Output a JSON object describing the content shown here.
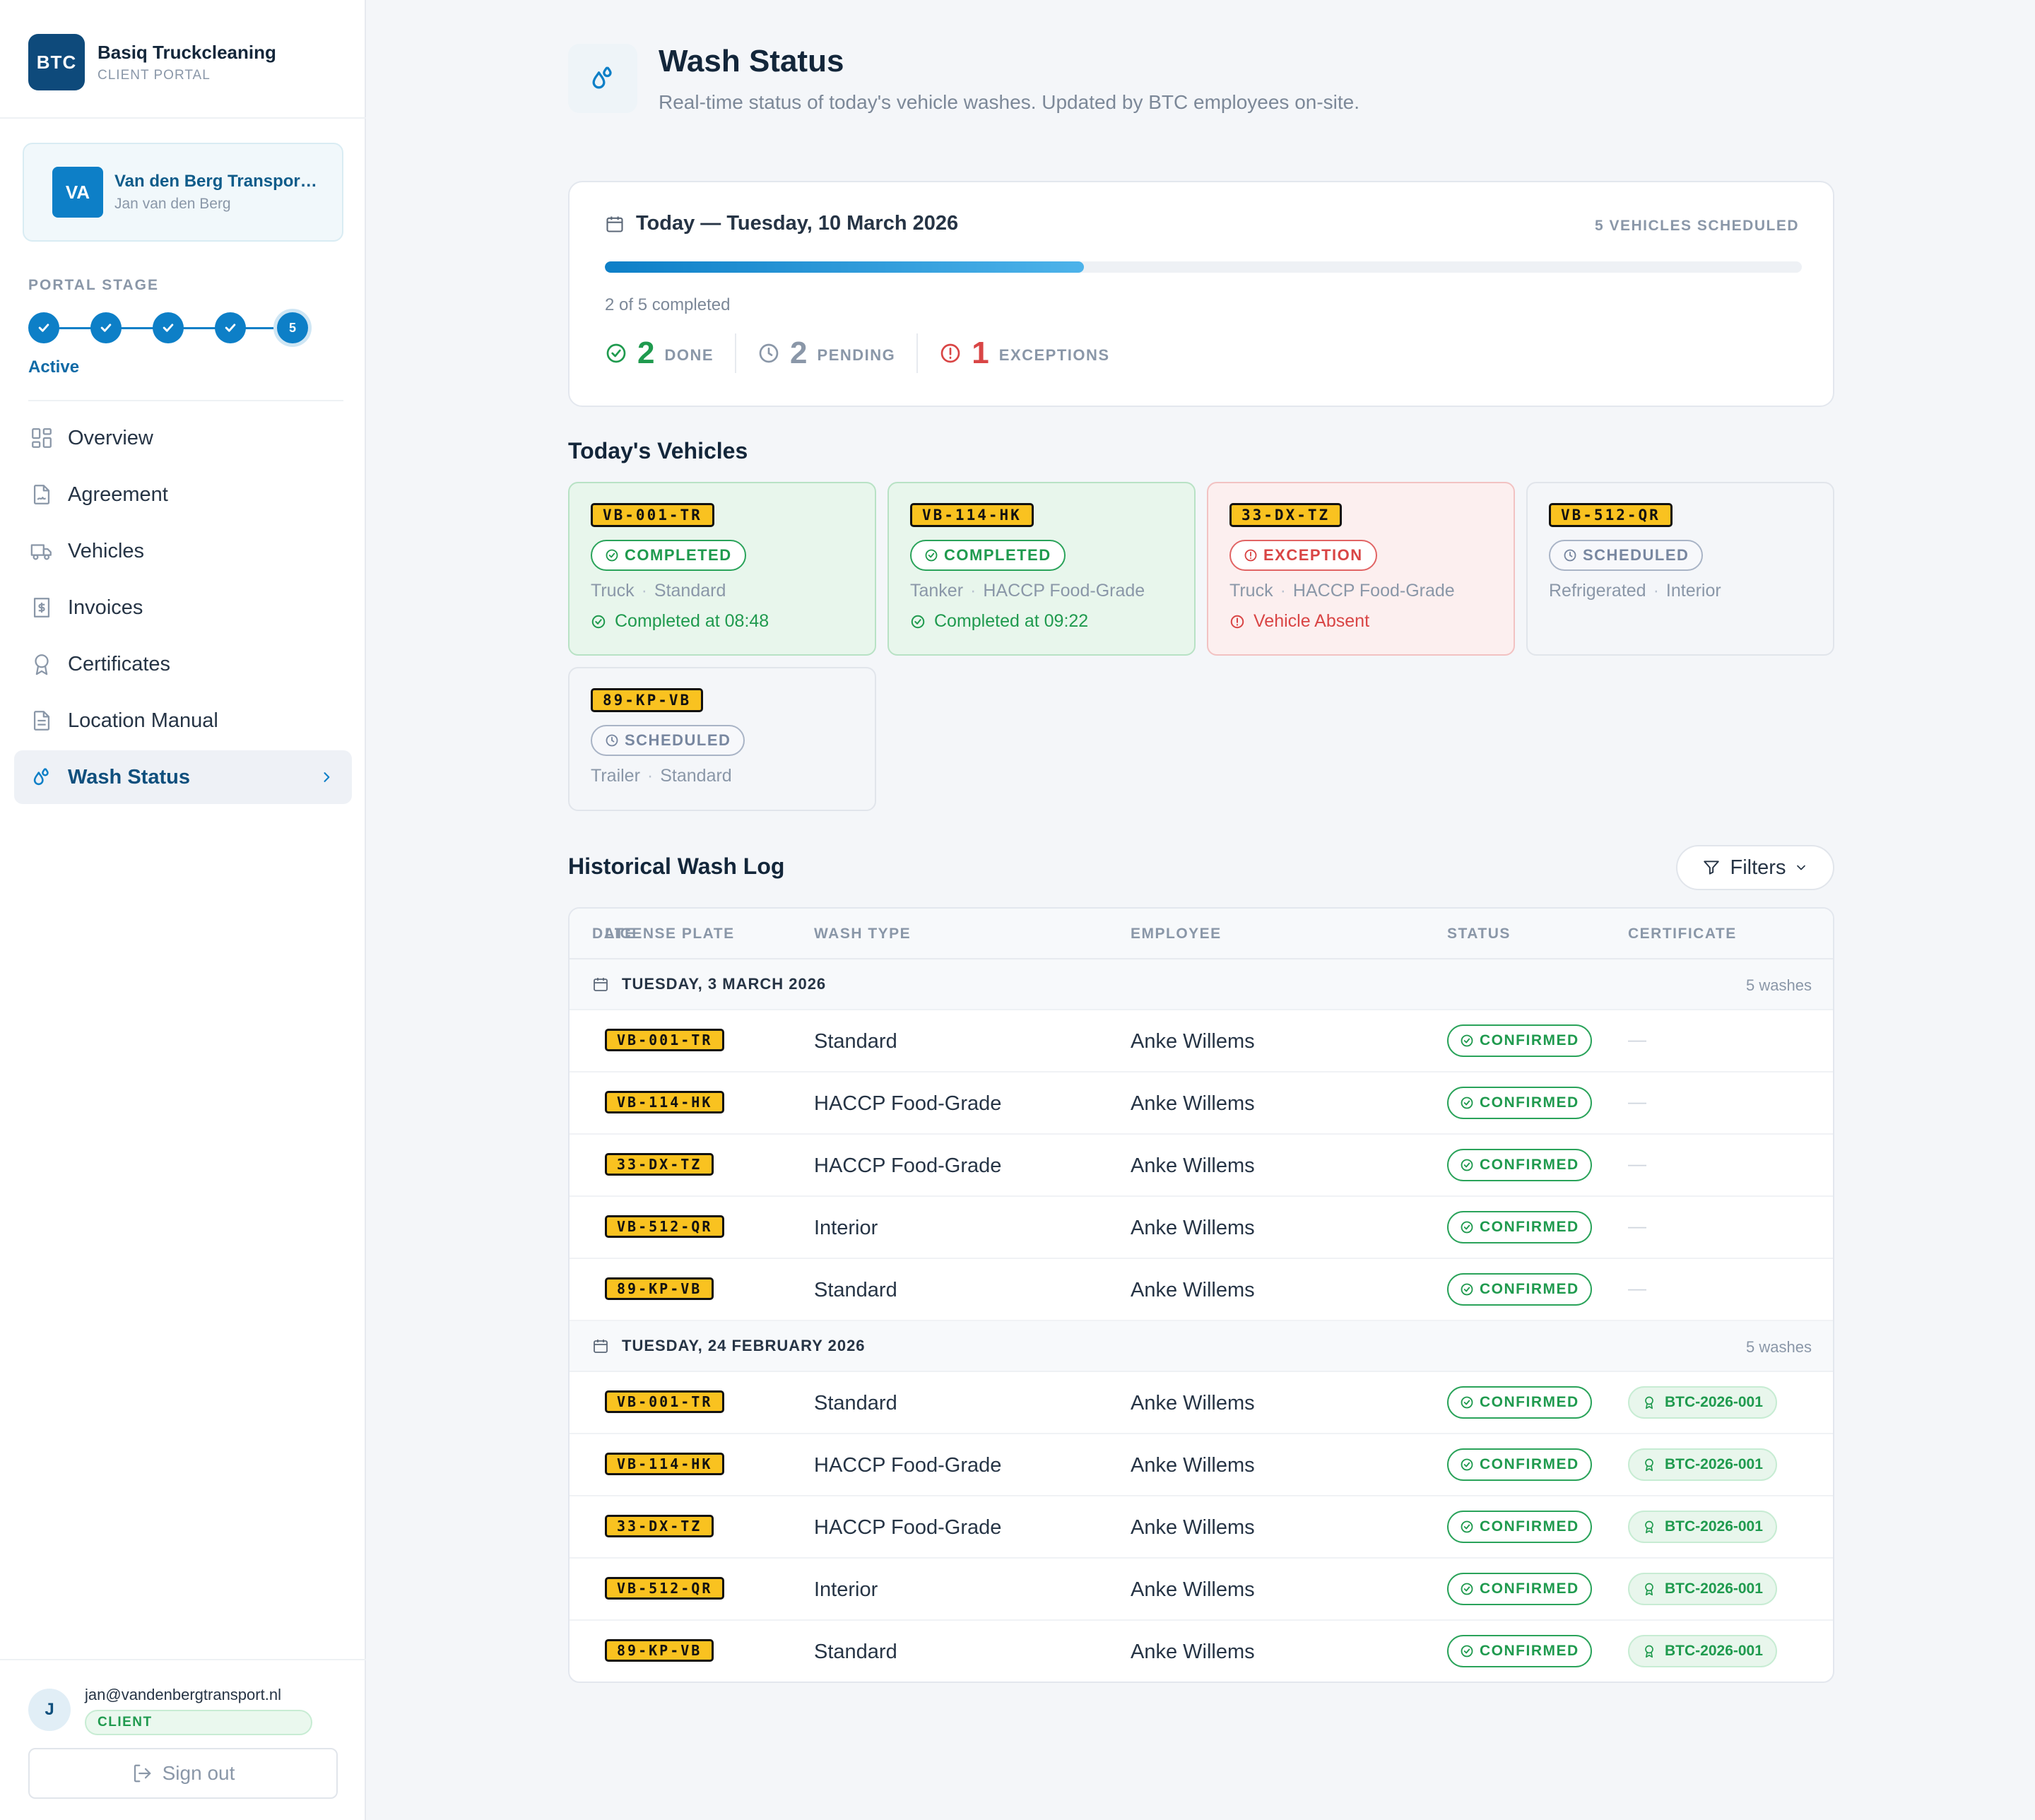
{
  "brand": {
    "logo": "BTC",
    "name": "Basiq Truckcleaning",
    "subtitle": "CLIENT PORTAL"
  },
  "client": {
    "initials": "VA",
    "company": "Van den Berg Transport B.V.",
    "person": "Jan van den Berg"
  },
  "portal_stage": {
    "label": "PORTAL STAGE",
    "current_step": "5",
    "status": "Active",
    "steps_total": 5
  },
  "nav": [
    {
      "label": "Overview",
      "icon": "grid-icon"
    },
    {
      "label": "Agreement",
      "icon": "document-sign-icon"
    },
    {
      "label": "Vehicles",
      "icon": "truck-icon"
    },
    {
      "label": "Invoices",
      "icon": "invoice-icon"
    },
    {
      "label": "Certificates",
      "icon": "award-icon"
    },
    {
      "label": "Location Manual",
      "icon": "file-text-icon"
    },
    {
      "label": "Wash Status",
      "icon": "droplets-icon",
      "active": true
    }
  ],
  "user": {
    "initial": "J",
    "email": "jan@vandenbergtransport.nl",
    "role": "CLIENT",
    "signout": "Sign out"
  },
  "header": {
    "title": "Wash Status",
    "subtitle": "Real-time status of today's vehicle washes. Updated by BTC employees on-site."
  },
  "today": {
    "date": "Today — Tuesday, 10 March 2026",
    "scheduled": "5 VEHICLES SCHEDULED",
    "progress_fraction": 0.4,
    "progress_label": "2 of 5 completed",
    "done_count": "2",
    "done_label": "DONE",
    "pending_count": "2",
    "pending_label": "PENDING",
    "exceptions_count": "1",
    "exceptions_label": "EXCEPTIONS"
  },
  "todays_vehicles_title": "Today's Vehicles",
  "vehicles": [
    {
      "plate": "VB-001-TR",
      "status": "COMPLETED",
      "type": "Truck",
      "wash": "Standard",
      "note": "Completed at 08:48"
    },
    {
      "plate": "VB-114-HK",
      "status": "COMPLETED",
      "type": "Tanker",
      "wash": "HACCP Food-Grade",
      "note": "Completed at 09:22"
    },
    {
      "plate": "33-DX-TZ",
      "status": "EXCEPTION",
      "type": "Truck",
      "wash": "HACCP Food-Grade",
      "note": "Vehicle Absent"
    },
    {
      "plate": "VB-512-QR",
      "status": "SCHEDULED",
      "type": "Refrigerated",
      "wash": "Interior"
    },
    {
      "plate": "89-KP-VB",
      "status": "SCHEDULED",
      "type": "Trailer",
      "wash": "Standard"
    }
  ],
  "history": {
    "title": "Historical Wash Log",
    "filters": "Filters",
    "columns": {
      "date": "DATE",
      "plate": "LICENSE PLATE",
      "wash_type": "WASH TYPE",
      "employee": "EMPLOYEE",
      "status": "STATUS",
      "certificate": "CERTIFICATE"
    },
    "groups": [
      {
        "date": "TUESDAY, 3 MARCH 2026",
        "count": "5 washes",
        "rows": [
          {
            "plate": "VB-001-TR",
            "wash": "Standard",
            "employee": "Anke Willems",
            "status": "CONFIRMED",
            "cert": "—"
          },
          {
            "plate": "VB-114-HK",
            "wash": "HACCP Food-Grade",
            "employee": "Anke Willems",
            "status": "CONFIRMED",
            "cert": "—"
          },
          {
            "plate": "33-DX-TZ",
            "wash": "HACCP Food-Grade",
            "employee": "Anke Willems",
            "status": "CONFIRMED",
            "cert": "—"
          },
          {
            "plate": "VB-512-QR",
            "wash": "Interior",
            "employee": "Anke Willems",
            "status": "CONFIRMED",
            "cert": "—"
          },
          {
            "plate": "89-KP-VB",
            "wash": "Standard",
            "employee": "Anke Willems",
            "status": "CONFIRMED",
            "cert": "—"
          }
        ]
      },
      {
        "date": "TUESDAY, 24 FEBRUARY 2026",
        "count": "5 washes",
        "rows": [
          {
            "plate": "VB-001-TR",
            "wash": "Standard",
            "employee": "Anke Willems",
            "status": "CONFIRMED",
            "cert": "BTC-2026-001"
          },
          {
            "plate": "VB-114-HK",
            "wash": "HACCP Food-Grade",
            "employee": "Anke Willems",
            "status": "CONFIRMED",
            "cert": "BTC-2026-001"
          },
          {
            "plate": "33-DX-TZ",
            "wash": "HACCP Food-Grade",
            "employee": "Anke Willems",
            "status": "CONFIRMED",
            "cert": "BTC-2026-001"
          },
          {
            "plate": "VB-512-QR",
            "wash": "Interior",
            "employee": "Anke Willems",
            "status": "CONFIRMED",
            "cert": "BTC-2026-001"
          },
          {
            "plate": "89-KP-VB",
            "wash": "Standard",
            "employee": "Anke Willems",
            "status": "CONFIRMED",
            "cert": "BTC-2026-001"
          }
        ]
      }
    ]
  },
  "colors": {
    "primary": "#0d7fc7",
    "navy": "#0e4a7b",
    "success": "#1f9a4e",
    "danger": "#d94545",
    "plate": "#f9c220"
  }
}
